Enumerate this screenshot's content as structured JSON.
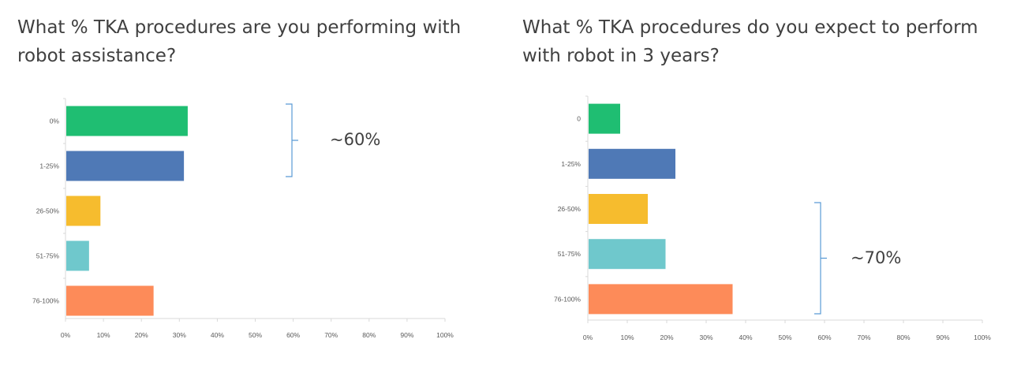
{
  "chart_data": [
    {
      "type": "bar",
      "orientation": "horizontal",
      "title": "What % TKA procedures are you performing with robot assistance?",
      "categories": [
        "0%",
        "1-25%",
        "26-50%",
        "51-75%",
        "76-100%"
      ],
      "values": [
        32,
        31,
        9,
        6,
        23
      ],
      "colors": [
        "#1fbe72",
        "#4f79b6",
        "#f6bc2e",
        "#6fc8cc",
        "#fd8b59"
      ],
      "x_ticks": [
        "0%",
        "10%",
        "20%",
        "30%",
        "40%",
        "50%",
        "60%",
        "70%",
        "80%",
        "90%",
        "100%"
      ],
      "xlim": [
        0,
        100
      ],
      "annotation": {
        "text": "~60%",
        "covers": [
          "0%",
          "1-25%"
        ]
      }
    },
    {
      "type": "bar",
      "orientation": "horizontal",
      "title": "What % TKA procedures do you expect to perform with robot in 3 years?",
      "categories": [
        "0",
        "1-25%",
        "26-50%",
        "51-75%",
        "76-100%"
      ],
      "values": [
        8,
        22,
        15,
        19.5,
        36.5
      ],
      "colors": [
        "#1fbe72",
        "#4f79b6",
        "#f6bc2e",
        "#6fc8cc",
        "#fd8b59"
      ],
      "x_ticks": [
        "0%",
        "10%",
        "20%",
        "30%",
        "40%",
        "50%",
        "60%",
        "70%",
        "80%",
        "90%",
        "100%"
      ],
      "xlim": [
        0,
        100
      ],
      "annotation": {
        "text": "~70%",
        "covers": [
          "26-50%",
          "51-75%",
          "76-100%"
        ]
      }
    }
  ],
  "bracket_color": "#5b9bd5",
  "axis_color": "#d9d9d9"
}
